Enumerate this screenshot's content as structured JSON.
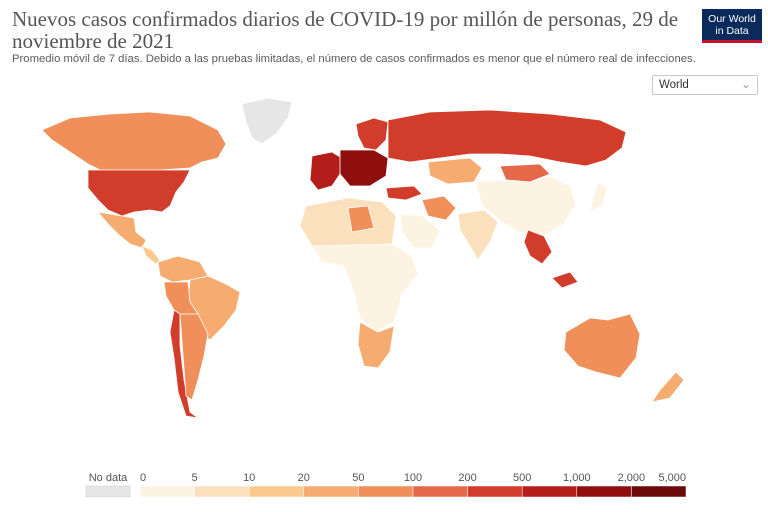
{
  "header": {
    "title": "Nuevos casos confirmados diarios de COVID-19 por millón de personas, 29 de noviembre de 2021",
    "subtitle": "Promedio móvil de 7 días. Debido a las pruebas limitadas, el número de casos confirmados es menor que el número real de infecciones.",
    "logo_line1": "Our World",
    "logo_line2": "in Data"
  },
  "region_select": {
    "value": "World"
  },
  "colors": {
    "no_data": "#e6e6e6",
    "scale": [
      "#fdf3e3",
      "#fbe0bd",
      "#f9c98e",
      "#f6ab70",
      "#f08f59",
      "#e6684a",
      "#d23c2b",
      "#b41d1a",
      "#8f0f0f",
      "#6b0808"
    ]
  },
  "legend": {
    "no_data_label": "No data",
    "ticks": [
      "0",
      "5",
      "10",
      "20",
      "50",
      "100",
      "200",
      "500",
      "1,000",
      "2,000",
      "5,000"
    ]
  },
  "map_data": {
    "bins": [
      "0-5",
      "5-10",
      "10-20",
      "20-50",
      "50-100",
      "100-200",
      "200-500",
      "500-1,000",
      "1,000-2,000",
      "2,000-5,000"
    ],
    "regions": [
      {
        "region": "Greenland",
        "bin": "no data"
      },
      {
        "region": "Canada",
        "bin": "50-100"
      },
      {
        "region": "United States",
        "bin": "200-500"
      },
      {
        "region": "Mexico",
        "bin": "20-50"
      },
      {
        "region": "Central America",
        "bin": "10-20"
      },
      {
        "region": "South America (north)",
        "bin": "20-50"
      },
      {
        "region": "Brazil",
        "bin": "20-50"
      },
      {
        "region": "Bolivia",
        "bin": "50-100"
      },
      {
        "region": "Chile",
        "bin": "200-500"
      },
      {
        "region": "Argentina",
        "bin": "50-100"
      },
      {
        "region": "Western Europe",
        "bin": "500-1,000"
      },
      {
        "region": "Central Europe",
        "bin": "1,000-2,000"
      },
      {
        "region": "Scandinavia",
        "bin": "200-500"
      },
      {
        "region": "Russia",
        "bin": "200-500"
      },
      {
        "region": "Kazakhstan",
        "bin": "20-50"
      },
      {
        "region": "Mongolia",
        "bin": "100-200"
      },
      {
        "region": "China",
        "bin": "0-5"
      },
      {
        "region": "Turkey",
        "bin": "200-500"
      },
      {
        "region": "Iran",
        "bin": "50-100"
      },
      {
        "region": "Arabian Peninsula",
        "bin": "0-5"
      },
      {
        "region": "India",
        "bin": "5-10"
      },
      {
        "region": "Southeast Asia",
        "bin": "200-500"
      },
      {
        "region": "Japan",
        "bin": "0-5"
      },
      {
        "region": "North Africa",
        "bin": "5-10"
      },
      {
        "region": "Libya",
        "bin": "50-100"
      },
      {
        "region": "Sub-Saharan Africa",
        "bin": "0-5"
      },
      {
        "region": "Southern Africa",
        "bin": "20-50"
      },
      {
        "region": "Australia",
        "bin": "50-100"
      },
      {
        "region": "New Zealand",
        "bin": "20-50"
      }
    ]
  }
}
